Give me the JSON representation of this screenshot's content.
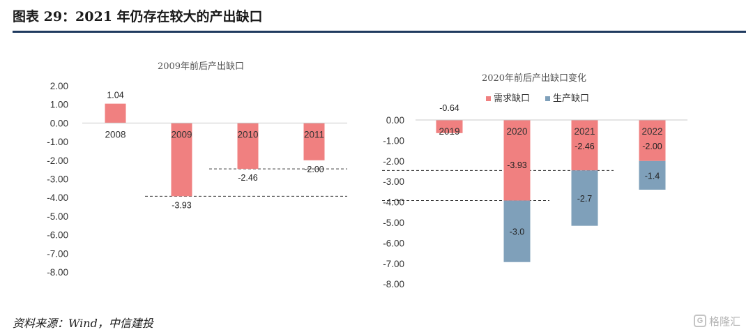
{
  "figure": {
    "title": "图表 29：2021 年仍存在较大的产出缺口",
    "source": "资料来源：Wind，中信建投",
    "watermark": "格隆汇"
  },
  "colors": {
    "demand": "#f08080",
    "supply": "#7fa0ba",
    "rule": "#1f3a5f",
    "axis": "#c9c9c9"
  },
  "chart_data": [
    {
      "type": "bar",
      "title": "2009年前后产出缺口",
      "categories": [
        "2008",
        "2009",
        "2010",
        "2011"
      ],
      "series": [
        {
          "values": [
            1.04,
            -3.93,
            -2.46,
            -2.0
          ]
        }
      ],
      "data_labels": [
        "1.04",
        "-3.93",
        "-2.46",
        "-2.00"
      ],
      "yticks": [
        "2.00",
        "1.00",
        "0.00",
        "-1.00",
        "-2.00",
        "-3.00",
        "-4.00",
        "-5.00",
        "-6.00",
        "-7.00",
        "-8.00"
      ],
      "ylim": [
        -8,
        2
      ],
      "reference_lines": [
        -3.93,
        -2.46
      ],
      "grid": false,
      "xlabel": "",
      "ylabel": ""
    },
    {
      "type": "bar",
      "stacked": true,
      "title": "2020年前后产出缺口变化",
      "categories": [
        "2019",
        "2020",
        "2021",
        "2022"
      ],
      "series": [
        {
          "name": "需求缺口",
          "values": [
            -0.64,
            -3.93,
            -2.46,
            -2.0
          ]
        },
        {
          "name": "生产缺口",
          "values": [
            0,
            -3.0,
            -2.7,
            -1.4
          ]
        }
      ],
      "data_labels": {
        "需求缺口": [
          "-0.64",
          "-3.93",
          "-2.46",
          "-2.00"
        ],
        "生产缺口": [
          "",
          "-3.0",
          "-2.7",
          "-1.4"
        ]
      },
      "yticks": [
        "0.00",
        "-1.00",
        "-2.00",
        "-3.00",
        "-4.00",
        "-5.00",
        "-6.00",
        "-7.00",
        "-8.00"
      ],
      "ylim": [
        -8,
        0
      ],
      "legend": "top-right",
      "reference_lines": [
        -3.93,
        -2.46
      ],
      "grid": false,
      "xlabel": "",
      "ylabel": ""
    }
  ]
}
